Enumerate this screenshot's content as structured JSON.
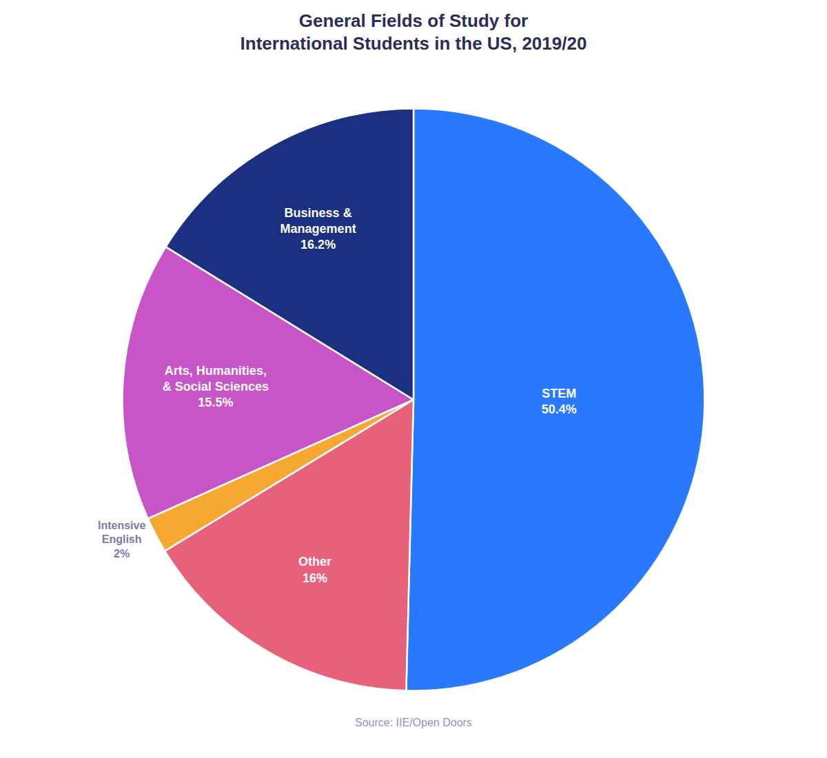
{
  "chart_data": {
    "type": "pie",
    "title": "General Fields of Study for\nInternational Students in the US, 2019/20",
    "annotations": [
      "Source: IIE/Open Doors"
    ],
    "categories": [
      "STEM",
      "Other",
      "Intensive\nEnglish",
      "Arts, Humanities,\n& Social Sciences",
      "Business &\nManagement"
    ],
    "values": [
      50.4,
      15.9,
      2.0,
      15.5,
      16.2
    ],
    "value_labels": [
      "50.4%",
      "16%",
      "2%",
      "15.5%",
      "16.2%"
    ],
    "colors": [
      "#2979FF",
      "#E8617A",
      "#F5A930",
      "#C855C8",
      "#1B3080"
    ],
    "data_labels": true
  }
}
